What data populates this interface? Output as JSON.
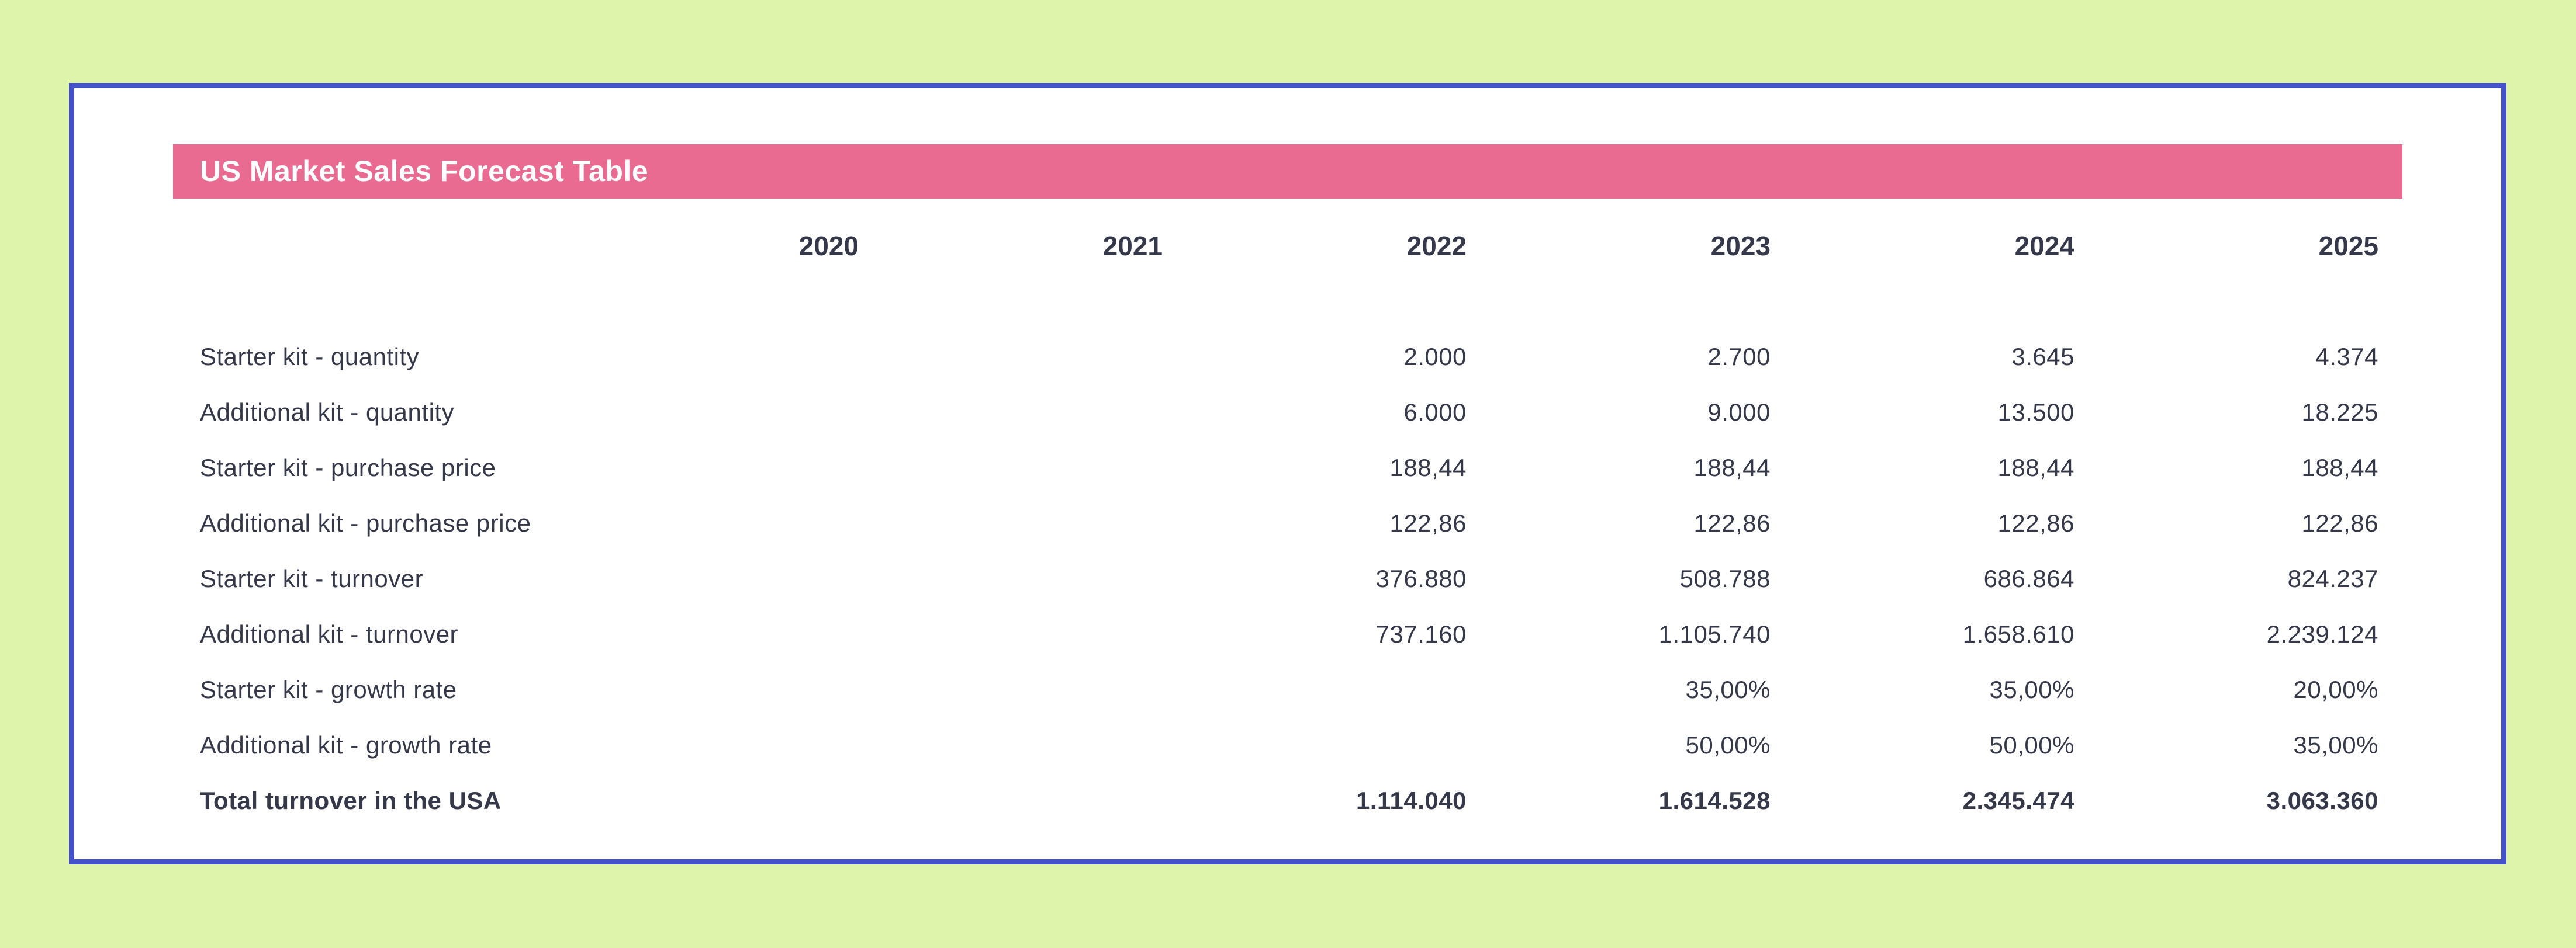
{
  "colors": {
    "page_background": "#def4ab",
    "card_background": "#ffffff",
    "card_border": "#4451c8",
    "banner_background": "#ea6b92",
    "banner_text": "#ffffff",
    "text": "#343849"
  },
  "banner": {
    "title": "US Market Sales Forecast Table"
  },
  "table": {
    "columns": [
      "2020",
      "2021",
      "2022",
      "2023",
      "2024",
      "2025"
    ],
    "rows": [
      {
        "label": "Starter kit - quantity",
        "values": [
          "",
          "",
          "2.000",
          "2.700",
          "3.645",
          "4.374"
        ]
      },
      {
        "label": "Additional kit - quantity",
        "values": [
          "",
          "",
          "6.000",
          "9.000",
          "13.500",
          "18.225"
        ]
      },
      {
        "label": "Starter kit - purchase price",
        "values": [
          "",
          "",
          "188,44",
          "188,44",
          "188,44",
          "188,44"
        ]
      },
      {
        "label": "Additional kit - purchase price",
        "values": [
          "",
          "",
          "122,86",
          "122,86",
          "122,86",
          "122,86"
        ]
      },
      {
        "label": "Starter kit - turnover",
        "values": [
          "",
          "",
          "376.880",
          "508.788",
          "686.864",
          "824.237"
        ]
      },
      {
        "label": "Additional kit - turnover",
        "values": [
          "",
          "",
          "737.160",
          "1.105.740",
          "1.658.610",
          "2.239.124"
        ]
      },
      {
        "label": "Starter kit - growth rate",
        "values": [
          "",
          "",
          "",
          "35,00%",
          "35,00%",
          "20,00%"
        ]
      },
      {
        "label": "Additional kit - growth rate",
        "values": [
          "",
          "",
          "",
          "50,00%",
          "50,00%",
          "35,00%"
        ]
      },
      {
        "label": "Total turnover in the USA",
        "values": [
          "",
          "",
          "1.114.040",
          "1.614.528",
          "2.345.474",
          "3.063.360"
        ]
      }
    ]
  },
  "chart_data": {
    "type": "table",
    "title": "US Market Sales Forecast Table",
    "categories": [
      2020,
      2021,
      2022,
      2023,
      2024,
      2025
    ],
    "series": [
      {
        "name": "Starter kit - quantity",
        "values": [
          null,
          null,
          2000,
          2700,
          3645,
          4374
        ]
      },
      {
        "name": "Additional kit - quantity",
        "values": [
          null,
          null,
          6000,
          9000,
          13500,
          18225
        ]
      },
      {
        "name": "Starter kit - purchase price",
        "values": [
          null,
          null,
          188.44,
          188.44,
          188.44,
          188.44
        ]
      },
      {
        "name": "Additional kit - purchase price",
        "values": [
          null,
          null,
          122.86,
          122.86,
          122.86,
          122.86
        ]
      },
      {
        "name": "Starter kit - turnover",
        "values": [
          null,
          null,
          376880,
          508788,
          686864,
          824237
        ]
      },
      {
        "name": "Additional kit - turnover",
        "values": [
          null,
          null,
          737160,
          1105740,
          1658610,
          2239124
        ]
      },
      {
        "name": "Starter kit - growth rate (%)",
        "values": [
          null,
          null,
          null,
          35.0,
          35.0,
          20.0
        ]
      },
      {
        "name": "Additional kit - growth rate (%)",
        "values": [
          null,
          null,
          null,
          50.0,
          50.0,
          35.0
        ]
      },
      {
        "name": "Total turnover in the USA",
        "values": [
          null,
          null,
          1114040,
          1614528,
          2345474,
          3063360
        ]
      }
    ],
    "number_format": "European: dot as thousands separator, comma as decimal separator"
  }
}
